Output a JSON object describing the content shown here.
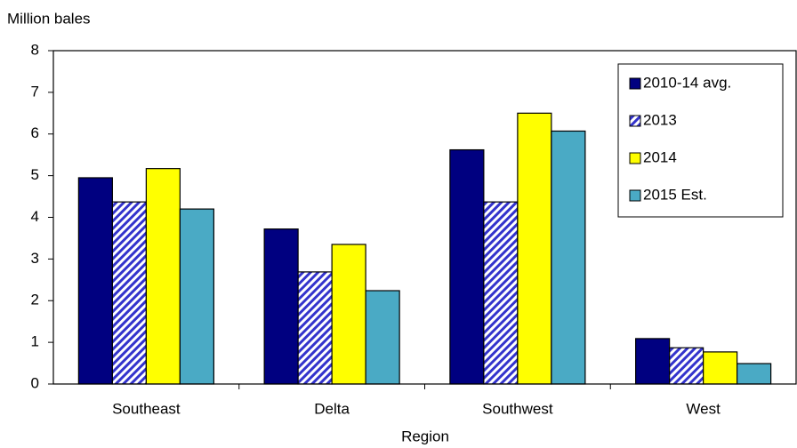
{
  "chart_data": {
    "type": "bar",
    "y_label": "Million bales",
    "x_label": "Region",
    "categories": [
      "Southeast",
      "Delta",
      "Southwest",
      "West"
    ],
    "series": [
      {
        "name": "2010-14 avg.",
        "color": "#000080",
        "values": [
          4.95,
          3.72,
          5.62,
          1.09
        ]
      },
      {
        "name": "2013",
        "color": "#3333cc",
        "hatch": true,
        "values": [
          4.37,
          2.69,
          4.37,
          0.87
        ]
      },
      {
        "name": "2014",
        "color": "#ffff00",
        "values": [
          5.17,
          3.35,
          6.5,
          0.77
        ]
      },
      {
        "name": "2015 Est.",
        "color": "#4aaac5",
        "values": [
          4.2,
          2.24,
          6.07,
          0.49
        ]
      }
    ],
    "ylim": [
      0,
      8
    ],
    "yticks": [
      0,
      1,
      2,
      3,
      4,
      5,
      6,
      7,
      8
    ],
    "grid": false,
    "legend_position": "top-right"
  }
}
